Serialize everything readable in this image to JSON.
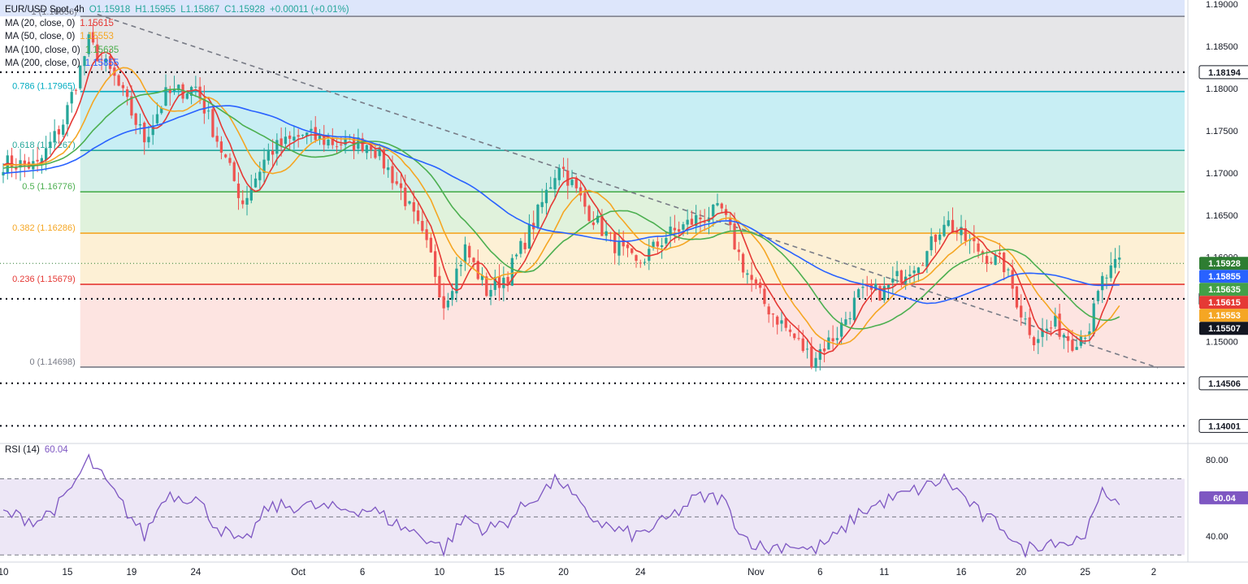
{
  "chart_data": {
    "type": "candlestick",
    "symbol_line": {
      "symbol": "EUR/USD Spot, 4h",
      "open": "O1.15918",
      "high": "H1.15955",
      "low": "L1.15867",
      "close": "C1.15928",
      "change": "+0.00011 (+0.01%)"
    },
    "moving_averages": [
      {
        "label": "MA (20, close, 0)",
        "value": "1.15615",
        "color": "#e53935"
      },
      {
        "label": "MA (50, close, 0)",
        "value": "1.15553",
        "color": "#f5a623"
      },
      {
        "label": "MA (100, close, 0)",
        "value": "1.15635",
        "color": "#4caf50"
      },
      {
        "label": "MA (200, close, 0)",
        "value": "1.15855",
        "color": "#2962ff"
      }
    ],
    "ylim": [
      1.1385,
      1.1905
    ],
    "y_ticks": [
      "1.19000",
      "1.18500",
      "1.18000",
      "1.17500",
      "1.17000",
      "1.16500",
      "1.16000",
      "1.15000"
    ],
    "x_ticks": [
      {
        "label": "10",
        "idx": 0
      },
      {
        "label": "15",
        "idx": 15
      },
      {
        "label": "19",
        "idx": 30
      },
      {
        "label": "24",
        "idx": 45
      },
      {
        "label": "Oct",
        "idx": 69
      },
      {
        "label": "6",
        "idx": 84
      },
      {
        "label": "10",
        "idx": 102
      },
      {
        "label": "15",
        "idx": 116
      },
      {
        "label": "20",
        "idx": 131
      },
      {
        "label": "24",
        "idx": 149
      },
      {
        "label": "Nov",
        "idx": 176
      },
      {
        "label": "6",
        "idx": 191
      },
      {
        "label": "11",
        "idx": 206
      },
      {
        "label": "16",
        "idx": 224
      },
      {
        "label": "20",
        "idx": 238
      },
      {
        "label": "25",
        "idx": 253
      },
      {
        "label": "2",
        "idx": 269
      }
    ],
    "fib_levels": [
      {
        "label": "0.786 (1.17965)",
        "value": 1.17965,
        "color": "#00acc1",
        "fill": "#c8eef4"
      },
      {
        "label": "0.618 (1.17267)",
        "value": 1.17267,
        "color": "#26a69a",
        "fill": "#d4efe8"
      },
      {
        "label": "0.5 (1.16776)",
        "value": 1.16776,
        "color": "#4caf50",
        "fill": "#e0f2dc"
      },
      {
        "label": "0.382 (1.16286)",
        "value": 1.16286,
        "color": "#f5a623",
        "fill": "#fdf0d5"
      },
      {
        "label": "0.236 (1.15679)",
        "value": 1.15679,
        "color": "#e53935",
        "fill": "#fde4e1"
      },
      {
        "label": "0 (1.14698)",
        "value": 1.14698,
        "color": "#787b86",
        "fill": "#fde4e1"
      }
    ],
    "fib_top": {
      "label": "1 (1.18856)",
      "value": 1.18856
    },
    "horizontal_levels": [
      {
        "label": "1.18194",
        "value": 1.18194
      },
      {
        "label": "1.15507",
        "value": 1.15507
      },
      {
        "label": "1.14506",
        "value": 1.14506
      },
      {
        "label": "1.14001",
        "value": 1.14001
      }
    ],
    "trendline": {
      "start": [
        1.1888,
        22
      ],
      "end": [
        1.1469,
        270
      ]
    },
    "price_badges": [
      {
        "text": "1.15928",
        "value": 1.15928,
        "color": "#2e7d32"
      },
      {
        "text": "1.15855",
        "value": 1.15855,
        "color": "#2962ff"
      },
      {
        "text": "1.15635",
        "value": 1.15635,
        "color": "#43a047"
      },
      {
        "text": "1.15615",
        "value": 1.15615,
        "color": "#e53935"
      },
      {
        "text": "1.15553",
        "value": 1.15553,
        "color": "#f5a623"
      },
      {
        "text": "1.15507",
        "value": 1.15507,
        "color": "#131722"
      }
    ],
    "candle_count": 262,
    "close_keypoints": [
      [
        0,
        1.1712
      ],
      [
        8,
        1.1708
      ],
      [
        14,
        1.176
      ],
      [
        20,
        1.1855
      ],
      [
        26,
        1.1812
      ],
      [
        33,
        1.174
      ],
      [
        38,
        1.1792
      ],
      [
        45,
        1.1802
      ],
      [
        50,
        1.174
      ],
      [
        56,
        1.1665
      ],
      [
        62,
        1.1725
      ],
      [
        70,
        1.1745
      ],
      [
        78,
        1.1735
      ],
      [
        86,
        1.1735
      ],
      [
        93,
        1.168
      ],
      [
        100,
        1.16
      ],
      [
        103,
        1.1545
      ],
      [
        108,
        1.161
      ],
      [
        113,
        1.156
      ],
      [
        118,
        1.158
      ],
      [
        124,
        1.164
      ],
      [
        130,
        1.1712
      ],
      [
        136,
        1.166
      ],
      [
        142,
        1.162
      ],
      [
        148,
        1.159
      ],
      [
        155,
        1.1625
      ],
      [
        162,
        1.1645
      ],
      [
        168,
        1.1655
      ],
      [
        173,
        1.159
      ],
      [
        178,
        1.1545
      ],
      [
        184,
        1.151
      ],
      [
        189,
        1.148
      ],
      [
        195,
        1.151
      ],
      [
        200,
        1.1555
      ],
      [
        206,
        1.156
      ],
      [
        211,
        1.1585
      ],
      [
        216,
        1.1605
      ],
      [
        220,
        1.1645
      ],
      [
        224,
        1.1625
      ],
      [
        229,
        1.1605
      ],
      [
        234,
        1.159
      ],
      [
        238,
        1.1535
      ],
      [
        241,
        1.1505
      ],
      [
        246,
        1.152
      ],
      [
        250,
        1.15
      ],
      [
        254,
        1.1518
      ],
      [
        257,
        1.1572
      ],
      [
        261,
        1.1593
      ]
    ],
    "rsi": {
      "label": "RSI (14)",
      "value": "60.04",
      "ylim": [
        28,
        86
      ],
      "ticks": [
        "80.00",
        "40.00"
      ],
      "bands": [
        70,
        50,
        30
      ],
      "keypoints": [
        [
          0,
          52
        ],
        [
          8,
          48
        ],
        [
          14,
          58
        ],
        [
          20,
          80
        ],
        [
          26,
          62
        ],
        [
          33,
          40
        ],
        [
          38,
          62
        ],
        [
          45,
          60
        ],
        [
          50,
          45
        ],
        [
          56,
          35
        ],
        [
          62,
          55
        ],
        [
          70,
          56
        ],
        [
          78,
          54
        ],
        [
          86,
          54
        ],
        [
          93,
          45
        ],
        [
          100,
          38
        ],
        [
          103,
          33
        ],
        [
          108,
          50
        ],
        [
          113,
          43
        ],
        [
          118,
          48
        ],
        [
          124,
          60
        ],
        [
          130,
          70
        ],
        [
          136,
          52
        ],
        [
          142,
          44
        ],
        [
          148,
          40
        ],
        [
          155,
          48
        ],
        [
          162,
          60
        ],
        [
          168,
          60
        ],
        [
          173,
          40
        ],
        [
          178,
          33
        ],
        [
          184,
          36
        ],
        [
          189,
          32
        ],
        [
          195,
          40
        ],
        [
          200,
          52
        ],
        [
          206,
          58
        ],
        [
          211,
          62
        ],
        [
          216,
          66
        ],
        [
          220,
          70
        ],
        [
          224,
          62
        ],
        [
          229,
          50
        ],
        [
          234,
          45
        ],
        [
          238,
          32
        ],
        [
          241,
          35
        ],
        [
          246,
          38
        ],
        [
          250,
          36
        ],
        [
          254,
          45
        ],
        [
          257,
          62
        ],
        [
          261,
          60
        ]
      ]
    }
  }
}
